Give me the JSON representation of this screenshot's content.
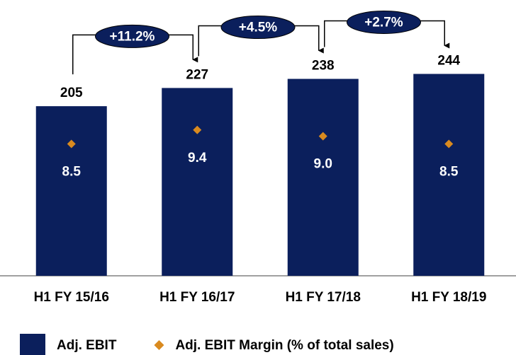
{
  "chart_data": {
    "type": "bar",
    "categories": [
      "H1 FY 15/16",
      "H1 FY 16/17",
      "H1 FY 17/18",
      "H1 FY 18/19"
    ],
    "series": [
      {
        "name": "Adj. EBIT",
        "color": "#0b1f5c",
        "values": [
          205,
          227,
          238,
          244
        ]
      },
      {
        "name": "Adj. EBIT Margin (% of total sales)",
        "color": "#d98a1f",
        "axis": "y2",
        "values": [
          8.5,
          9.4,
          9.0,
          8.5
        ],
        "value_labels": [
          "8.5",
          "9.4",
          "9.0",
          "8.5"
        ]
      }
    ],
    "annotations": [
      "+11.2%",
      "+4.5%",
      "+2.7%"
    ],
    "ylim": [
      0,
      300
    ],
    "y2lim": [
      0,
      16
    ],
    "legend": "bottom"
  }
}
